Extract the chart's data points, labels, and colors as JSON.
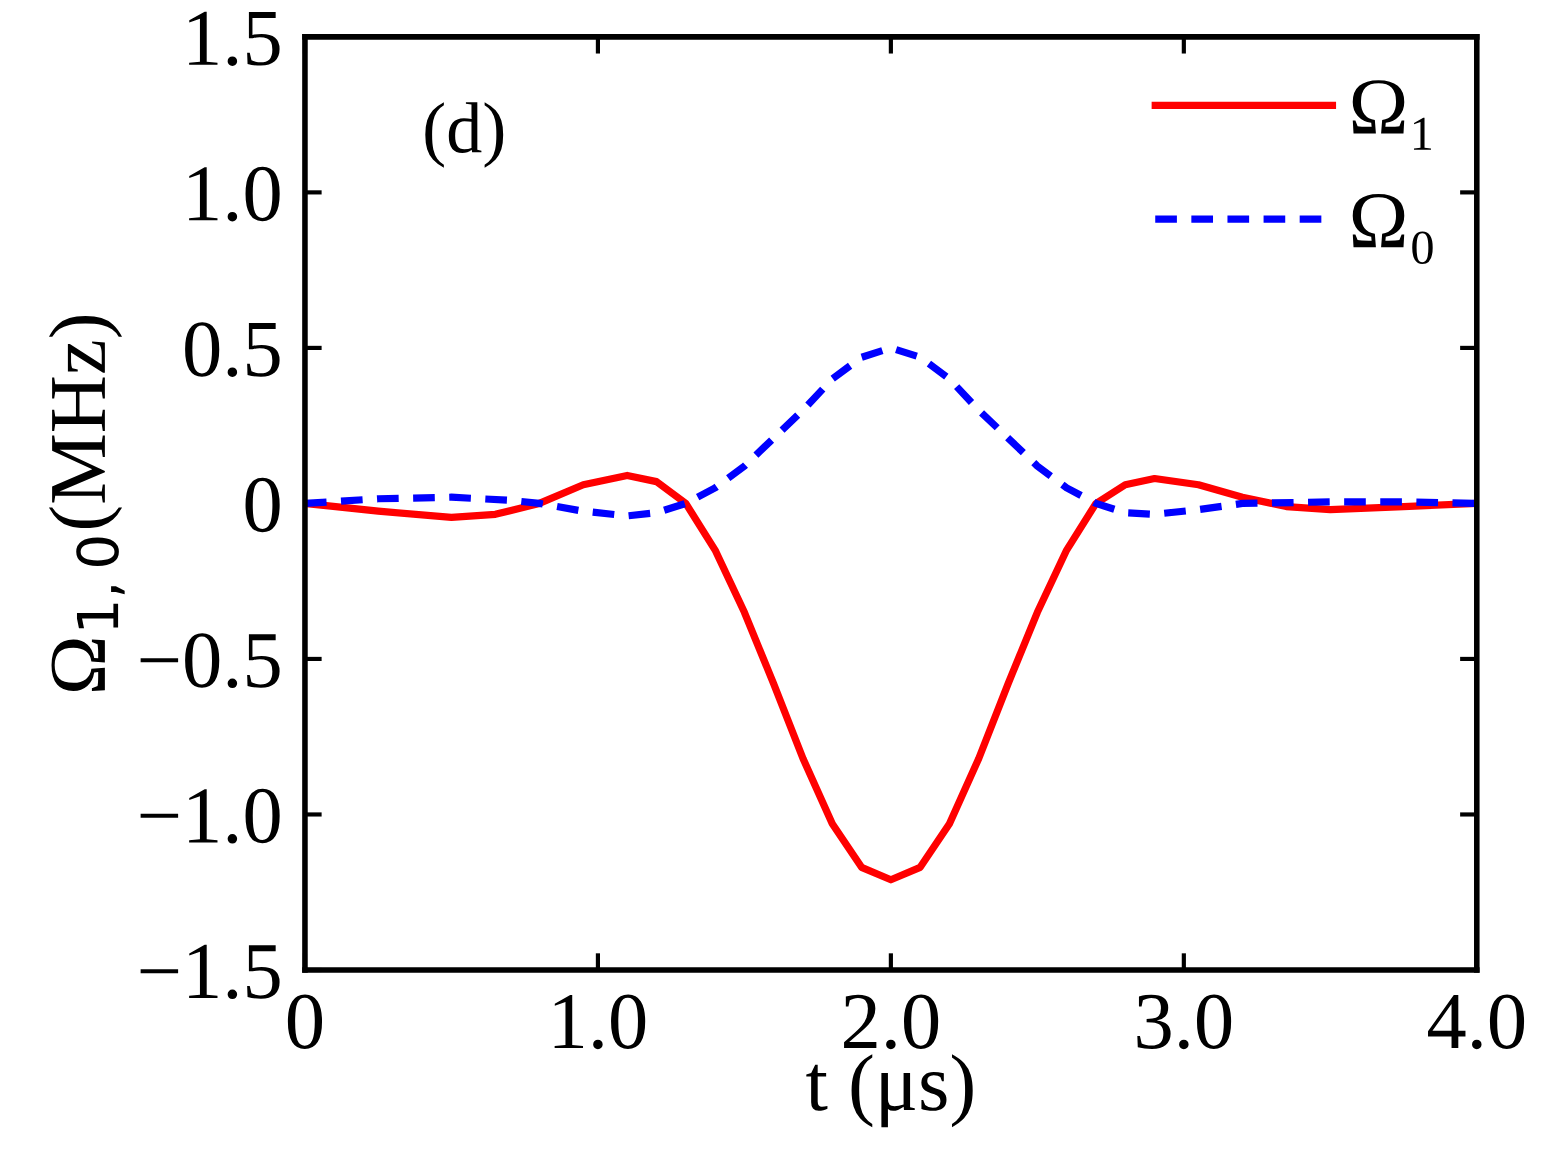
{
  "chart_data": {
    "type": "line",
    "xlabel": "t (μs)",
    "ylabel": "Ω$_{1,0}$(MHz)",
    "annotations": [
      "(d)"
    ],
    "xlim": [
      0,
      4
    ],
    "ylim": [
      -1.5,
      1.5
    ],
    "xticks": [
      0,
      {
        "value": 1,
        "label": "1.0"
      },
      {
        "value": 2,
        "label": "2.0"
      },
      {
        "value": 3,
        "label": "3.0"
      },
      {
        "value": 4,
        "label": "4.0"
      }
    ],
    "yticks": [
      {
        "value": -1.5,
        "label": "−1.5"
      },
      {
        "value": -1,
        "label": "−1.0"
      },
      {
        "value": -0.5,
        "label": "−0.5"
      },
      0,
      {
        "value": 0.5,
        "label": "0.5"
      },
      {
        "value": 1,
        "label": "1.0"
      },
      {
        "value": 1.5,
        "label": "1.5"
      }
    ],
    "legend": "top right",
    "grid": false,
    "series": [
      {
        "name": "Ω₁",
        "color": "#ff0000",
        "line_style": "solid",
        "x": [
          0,
          0.25,
          0.5,
          0.65,
          0.8,
          0.95,
          1.1,
          1.2,
          1.3,
          1.4,
          1.5,
          1.6,
          1.7,
          1.8,
          1.9,
          2.0,
          2.1,
          2.2,
          2.3,
          2.4,
          2.5,
          2.6,
          2.7,
          2.8,
          2.9,
          3.05,
          3.2,
          3.35,
          3.5,
          3.75,
          4.0
        ],
        "values": [
          0,
          -0.025,
          -0.045,
          -0.035,
          0,
          0.06,
          0.09,
          0.07,
          0,
          -0.15,
          -0.35,
          -0.58,
          -0.82,
          -1.03,
          -1.17,
          -1.21,
          -1.17,
          -1.03,
          -0.82,
          -0.58,
          -0.35,
          -0.15,
          0,
          0.06,
          0.08,
          0.06,
          0.02,
          -0.01,
          -0.02,
          -0.01,
          0
        ]
      },
      {
        "name": "Ω₀",
        "color": "#0000ff",
        "line_style": "dashed",
        "x": [
          0,
          0.25,
          0.5,
          0.7,
          0.8,
          0.95,
          1.1,
          1.2,
          1.3,
          1.4,
          1.5,
          1.6,
          1.7,
          1.8,
          1.9,
          2.0,
          2.1,
          2.2,
          2.3,
          2.4,
          2.5,
          2.6,
          2.7,
          2.8,
          2.9,
          3.05,
          3.2,
          3.5,
          3.75,
          4.0
        ],
        "values": [
          0,
          0.015,
          0.02,
          0.01,
          0,
          -0.025,
          -0.04,
          -0.03,
          0,
          0.05,
          0.12,
          0.21,
          0.3,
          0.4,
          0.47,
          0.5,
          0.47,
          0.4,
          0.3,
          0.21,
          0.12,
          0.05,
          0,
          -0.03,
          -0.035,
          -0.02,
          0,
          0.005,
          0.005,
          0
        ]
      }
    ]
  }
}
